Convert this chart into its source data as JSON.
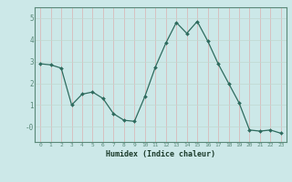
{
  "x": [
    0,
    1,
    2,
    3,
    4,
    5,
    6,
    7,
    8,
    9,
    10,
    11,
    12,
    13,
    14,
    15,
    16,
    17,
    18,
    19,
    20,
    21,
    22,
    23
  ],
  "y": [
    2.9,
    2.85,
    2.7,
    1.0,
    1.5,
    1.6,
    1.3,
    0.6,
    0.3,
    0.25,
    1.4,
    2.75,
    3.85,
    4.8,
    4.3,
    4.85,
    3.95,
    2.9,
    2.0,
    1.1,
    -0.15,
    -0.2,
    -0.15,
    -0.3
  ],
  "line_color": "#2e6b5e",
  "marker": "D",
  "marker_size": 2.0,
  "bg_color": "#cce8e8",
  "grid_v_color": "#dbb0b0",
  "grid_h_color": "#c0d8d0",
  "xlabel": "Humidex (Indice chaleur)",
  "xlim": [
    -0.5,
    23.5
  ],
  "ylim": [
    -0.7,
    5.5
  ],
  "yticks": [
    0,
    1,
    2,
    3,
    4,
    5
  ],
  "ytick_labels": [
    "-0",
    "1",
    "2",
    "3",
    "4",
    "5"
  ],
  "xticks": [
    0,
    1,
    2,
    3,
    4,
    5,
    6,
    7,
    8,
    9,
    10,
    11,
    12,
    13,
    14,
    15,
    16,
    17,
    18,
    19,
    20,
    21,
    22,
    23
  ]
}
